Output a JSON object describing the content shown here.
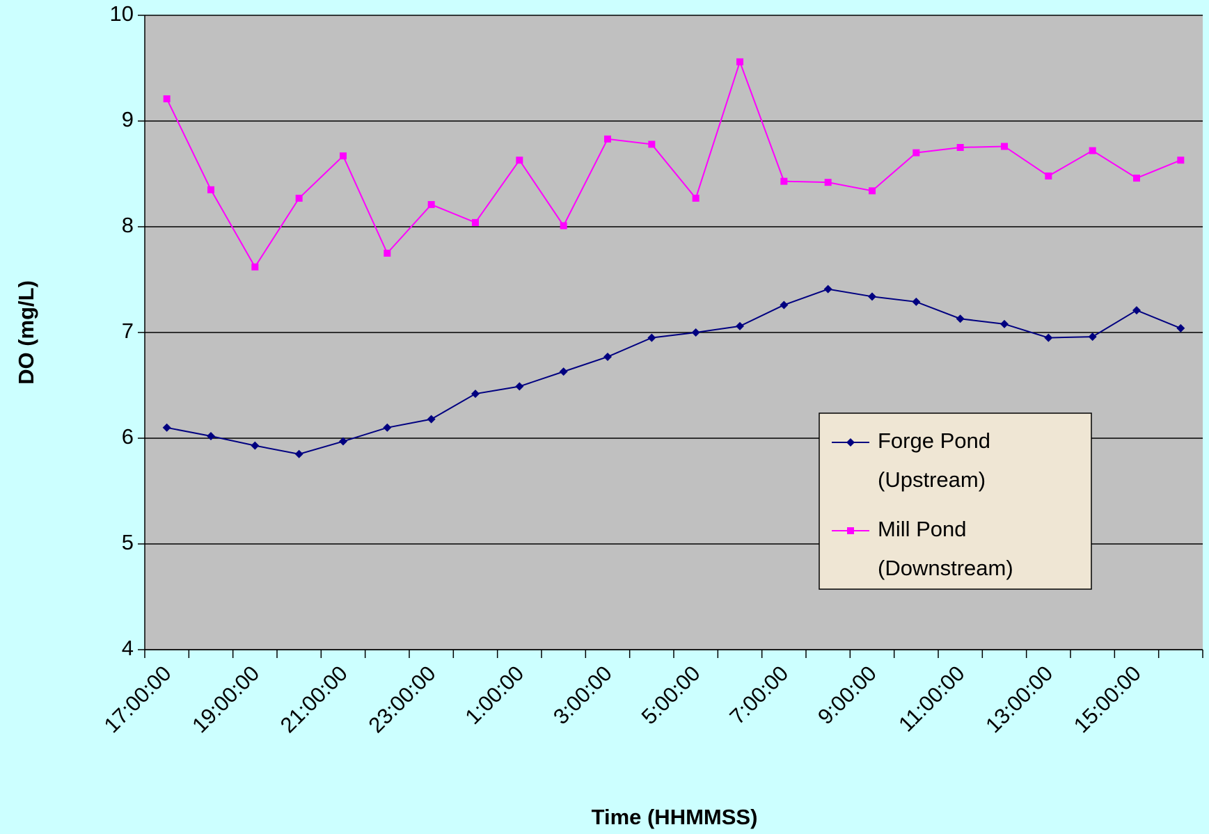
{
  "chart_data": {
    "type": "line",
    "x_label": "Time (HHMMSS)",
    "y_label": "DO (mg/L)",
    "categories": [
      "17:00:00",
      null,
      "19:00:00",
      null,
      "21:00:00",
      null,
      "23:00:00",
      null,
      "1:00:00",
      null,
      "3:00:00",
      null,
      "5:00:00",
      null,
      "7:00:00",
      null,
      "9:00:00",
      null,
      "11:00:00",
      null,
      "13:00:00",
      null,
      "15:00:00",
      null
    ],
    "series": [
      {
        "name": "Forge Pond (Upstream)",
        "color": "#000080",
        "marker": "diamond",
        "values": [
          6.1,
          6.02,
          5.93,
          5.85,
          5.97,
          6.1,
          6.18,
          6.42,
          6.49,
          6.63,
          6.77,
          6.95,
          7.0,
          7.06,
          7.26,
          7.41,
          7.34,
          7.29,
          7.13,
          7.08,
          6.95,
          6.96,
          7.21,
          7.04
        ]
      },
      {
        "name": "Mill Pond (Downstream)",
        "color": "#ff00ff",
        "marker": "square",
        "values": [
          9.21,
          8.35,
          7.62,
          8.27,
          8.67,
          7.75,
          8.21,
          8.04,
          8.63,
          8.01,
          8.83,
          8.78,
          8.27,
          9.56,
          8.43,
          8.42,
          8.34,
          8.7,
          8.75,
          8.76,
          8.48,
          8.72,
          8.46,
          8.63
        ]
      }
    ],
    "ylim": [
      4,
      10
    ],
    "yticks": [
      4,
      5,
      6,
      7,
      8,
      9,
      10
    ],
    "grid": true,
    "legend": "lower right"
  }
}
